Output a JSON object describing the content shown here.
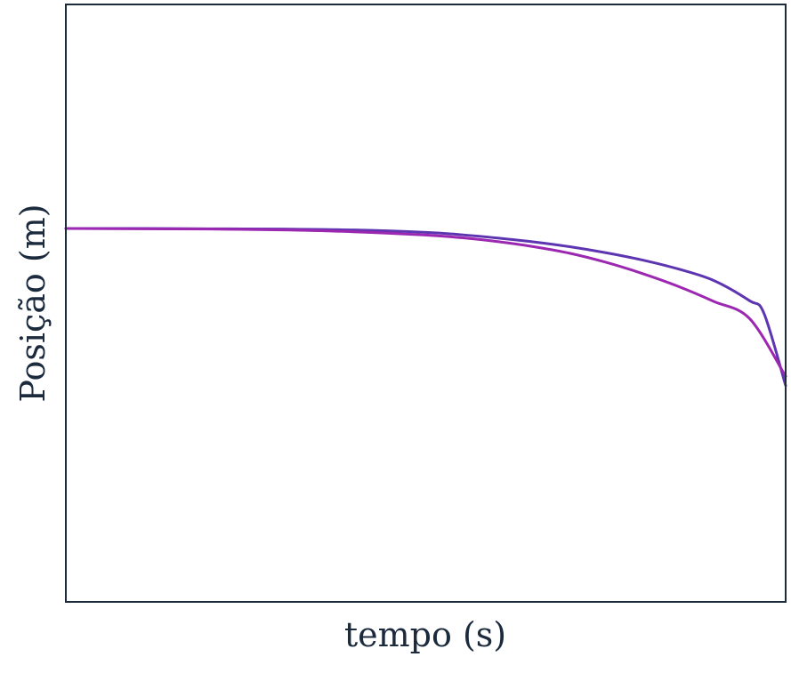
{
  "chart_data": {
    "type": "line",
    "title": "",
    "xlabel": "tempo (s)",
    "ylabel": "Posição (m)",
    "xlim": [
      0,
      1
    ],
    "ylim": [
      -1,
      1
    ],
    "grid": false,
    "legend": "none",
    "series": [
      {
        "color": "#5e35b1",
        "x": [
          0,
          0.1,
          0.2,
          0.3,
          0.4,
          0.5,
          0.55,
          0.6,
          0.65,
          0.7,
          0.75,
          0.8,
          0.85,
          0.9,
          0.95,
          0.97,
          1.0
        ],
        "y": [
          0.25,
          0.25,
          0.249,
          0.248,
          0.245,
          0.237,
          0.229,
          0.218,
          0.205,
          0.189,
          0.169,
          0.145,
          0.115,
          0.076,
          0.008,
          -0.035,
          -0.276
        ]
      },
      {
        "color": "#9c27b0",
        "x": [
          0,
          0.1,
          0.2,
          0.3,
          0.4,
          0.5,
          0.55,
          0.6,
          0.65,
          0.7,
          0.75,
          0.8,
          0.85,
          0.9,
          0.95,
          1.0
        ],
        "y": [
          0.25,
          0.249,
          0.248,
          0.245,
          0.239,
          0.228,
          0.219,
          0.206,
          0.189,
          0.167,
          0.137,
          0.1,
          0.057,
          0.006,
          -0.052,
          -0.245
        ]
      }
    ]
  }
}
